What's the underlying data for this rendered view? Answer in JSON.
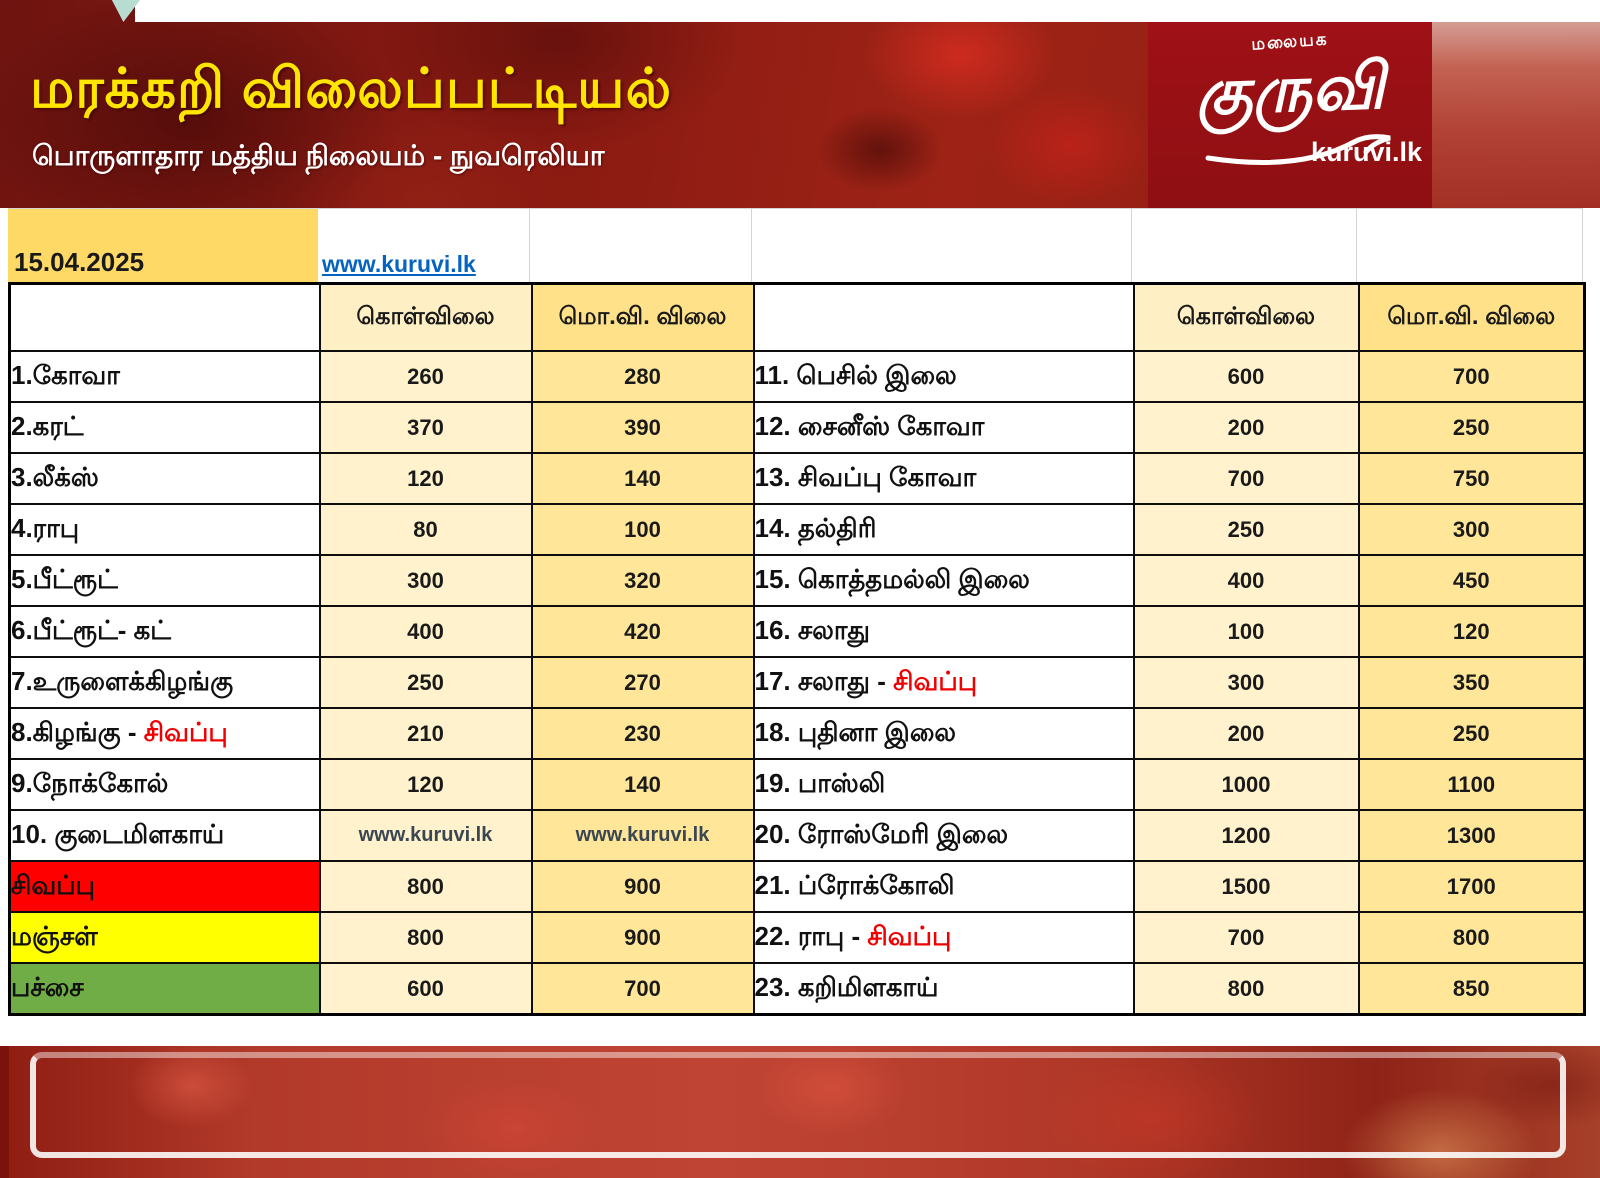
{
  "banner": {
    "title": "மரக்கறி விலைப்பட்டியல்",
    "subtitle": "பொருளாதார மத்திய நிலையம் - நுவரெலியா",
    "logo": {
      "top": "மலையக",
      "main": "குருவி",
      "site": "kuruvi.lk"
    }
  },
  "info_row": {
    "date": "15.04.2025",
    "link": "www.kuruvi.lk"
  },
  "columns": {
    "buy": "கொள்விலை",
    "sell": "மொ.வி. விலை"
  },
  "colors": {
    "buy_col": "#FFF2CC",
    "sell_col": "#FFE699",
    "header_buy": "#FFEFC4",
    "header_sell": "#FFE18A",
    "date_cell": "#FFD966",
    "row_red": "#FF0000",
    "row_yellow": "#FFFF00",
    "row_green": "#70AD47",
    "red_text": "#F00000",
    "link_blue": "#0563C1",
    "title_yellow": "#FFE600"
  },
  "table_left": {
    "rows": [
      {
        "label": "1.கோவா",
        "red": "",
        "bg": "",
        "buy": "260",
        "sell": "280"
      },
      {
        "label": "2.கரட்",
        "red": "",
        "bg": "",
        "buy": "370",
        "sell": "390"
      },
      {
        "label": "3.லீக்ஸ்",
        "red": "",
        "bg": "",
        "buy": "120",
        "sell": "140"
      },
      {
        "label": "4.ராபு",
        "red": "",
        "bg": "",
        "buy": "80",
        "sell": "100"
      },
      {
        "label": "5.பீட்ரூட்",
        "red": "",
        "bg": "",
        "buy": "300",
        "sell": "320"
      },
      {
        "label": "6.பீட்ரூட்- கட்",
        "red": "",
        "bg": "",
        "buy": "400",
        "sell": "420"
      },
      {
        "label": "7.உருளைக்கிழங்கு",
        "red": "",
        "bg": "",
        "buy": "250",
        "sell": "270"
      },
      {
        "label": "8.கிழங்கு - ",
        "red": "சிவப்பு",
        "bg": "",
        "buy": "210",
        "sell": "230"
      },
      {
        "label": "9.நோக்கோல்",
        "red": "",
        "bg": "",
        "buy": "120",
        "sell": "140"
      },
      {
        "label": "10. குடைமிளகாய்",
        "red": "",
        "bg": "",
        "buy": "www.kuruvi.lk",
        "sell": "www.kuruvi.lk",
        "text_values": true
      },
      {
        "label": "சிவப்பு",
        "red": "",
        "bg": "red",
        "buy": "800",
        "sell": "900"
      },
      {
        "label": "மஞ்சள்",
        "red": "",
        "bg": "yellow",
        "buy": "800",
        "sell": "900"
      },
      {
        "label": "பச்சை",
        "red": "",
        "bg": "green",
        "buy": "600",
        "sell": "700"
      }
    ]
  },
  "table_right": {
    "rows": [
      {
        "label": "11. பெசில் இலை",
        "red": "",
        "bg": "",
        "buy": "600",
        "sell": "700"
      },
      {
        "label": "12. சைனீஸ் கோவா",
        "red": "",
        "bg": "",
        "buy": "200",
        "sell": "250"
      },
      {
        "label": "13. சிவப்பு கோவா",
        "red": "",
        "bg": "",
        "buy": "700",
        "sell": "750"
      },
      {
        "label": "14. தல்திரி",
        "red": "",
        "bg": "",
        "buy": "250",
        "sell": "300"
      },
      {
        "label": "15. கொத்தமல்லி இலை",
        "red": "",
        "bg": "",
        "buy": "400",
        "sell": "450"
      },
      {
        "label": "16. சலாது",
        "red": "",
        "bg": "",
        "buy": "100",
        "sell": "120"
      },
      {
        "label": "17. சலாது - ",
        "red": "சிவப்பு",
        "bg": "",
        "buy": "300",
        "sell": "350"
      },
      {
        "label": "18. புதினா இலை",
        "red": "",
        "bg": "",
        "buy": "200",
        "sell": "250"
      },
      {
        "label": "19. பாஸ்லி",
        "red": "",
        "bg": "",
        "buy": "1000",
        "sell": "1100"
      },
      {
        "label": "20. ரோஸ்மேரி இலை",
        "red": "",
        "bg": "",
        "buy": "1200",
        "sell": "1300"
      },
      {
        "label": "21. ப்ரோக்கோலி",
        "red": "",
        "bg": "",
        "buy": "1500",
        "sell": "1700"
      },
      {
        "label": "22. ராபு - ",
        "red": "சிவப்பு",
        "bg": "",
        "buy": "700",
        "sell": "800"
      },
      {
        "label": "23. கறிமிளகாய்",
        "red": "",
        "bg": "",
        "buy": "800",
        "sell": "850"
      }
    ]
  }
}
